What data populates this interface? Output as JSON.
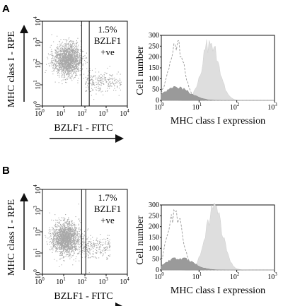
{
  "chart_data": [
    {
      "panel": "A",
      "type": "scatter",
      "xlabel": "BZLF1 - FITC",
      "ylabel": "MHC class I - RPE",
      "xscale": "log",
      "yscale": "log",
      "xlim": [
        1,
        10000
      ],
      "ylim": [
        1,
        10000
      ],
      "x_ticks": [
        "10",
        "10",
        "10",
        "10",
        "10"
      ],
      "x_tick_exponents": [
        "0",
        "1",
        "2",
        "3",
        "4"
      ],
      "y_ticks": [
        "10",
        "10",
        "10",
        "10",
        "10"
      ],
      "y_tick_exponents": [
        "0",
        "1",
        "2",
        "3",
        "4"
      ],
      "gate": {
        "x_range": [
          70,
          160
        ],
        "annotation": [
          "1.5%",
          "BZLF1",
          "+ve"
        ]
      },
      "population": {
        "main_cluster": {
          "x_center": 15,
          "y_center": 150
        },
        "tail": {
          "x_range": [
            100,
            5000
          ],
          "y_center": 15
        }
      },
      "color": "#a8a8a8"
    },
    {
      "panel": "A",
      "type": "area",
      "xlabel": "MHC class I expression",
      "ylabel": "Cell number",
      "xscale": "log",
      "xlim": [
        1,
        1000
      ],
      "ylim": [
        0,
        300
      ],
      "x_ticks": [
        "10",
        "10",
        "10",
        "10"
      ],
      "x_tick_exponents": [
        "0",
        "1",
        "2",
        "3"
      ],
      "y_ticks": [
        "0",
        "50",
        "100",
        "150",
        "200",
        "250",
        "300"
      ],
      "series": [
        {
          "style": "dashed-outline",
          "peak_x": 2.5,
          "peak_y": 260
        },
        {
          "style": "light-filled",
          "peak_x": 20,
          "peak_y": 270
        },
        {
          "style": "dark-filled",
          "peak_x": 2.5,
          "peak_y": 60
        }
      ]
    },
    {
      "panel": "B",
      "type": "scatter",
      "xlabel": "BZLF1 - FITC",
      "ylabel": "MHC class I - RPE",
      "xscale": "log",
      "yscale": "log",
      "xlim": [
        1,
        10000
      ],
      "ylim": [
        1,
        10000
      ],
      "x_ticks": [
        "10",
        "10",
        "10",
        "10",
        "10"
      ],
      "x_tick_exponents": [
        "0",
        "1",
        "2",
        "3",
        "4"
      ],
      "y_ticks": [
        "10",
        "10",
        "10",
        "10",
        "10"
      ],
      "y_tick_exponents": [
        "0",
        "1",
        "2",
        "3",
        "4"
      ],
      "gate": {
        "x_range": [
          70,
          110
        ],
        "annotation": [
          "1.7%",
          "BZLF1",
          "+ve"
        ]
      },
      "population": {
        "main_cluster": {
          "x_center": 12,
          "y_center": 50
        },
        "tail": {
          "x_range": [
            60,
            1500
          ],
          "y_center": 20
        }
      },
      "color": "#a8a8a8"
    },
    {
      "panel": "B",
      "type": "area",
      "xlabel": "MHC class I expression",
      "ylabel": "Cell number",
      "xscale": "log",
      "xlim": [
        1,
        1000
      ],
      "ylim": [
        0,
        300
      ],
      "x_ticks": [
        "10",
        "10",
        "10",
        "10"
      ],
      "x_tick_exponents": [
        "0",
        "1",
        "2",
        "3"
      ],
      "y_ticks": [
        "0",
        "50",
        "100",
        "150",
        "200",
        "250",
        "300"
      ],
      "series": [
        {
          "style": "dashed-outline",
          "peak_x": 2.3,
          "peak_y": 265
        },
        {
          "style": "light-filled",
          "peak_x": 25,
          "peak_y": 280
        },
        {
          "style": "dark-filled",
          "peak_x": 3,
          "peak_y": 55
        }
      ]
    }
  ]
}
